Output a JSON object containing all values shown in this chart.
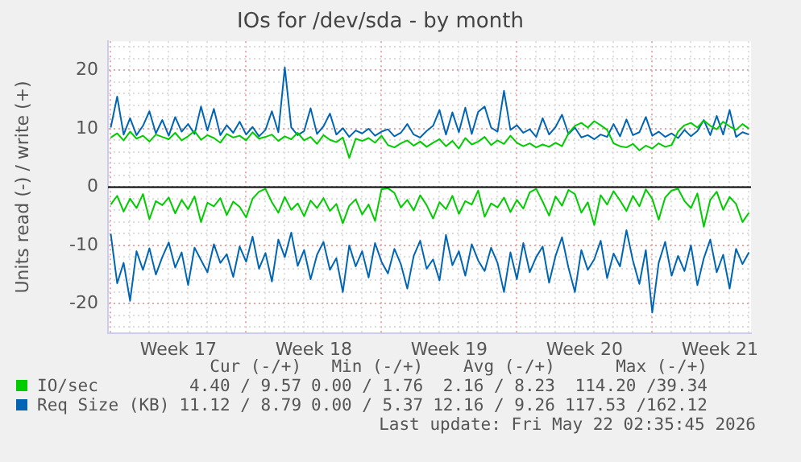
{
  "chart_data": {
    "type": "line",
    "title": "IOs for /dev/sda - by month",
    "ylabel": "Units read (-) / write (+)",
    "x": [
      "2026-04-19T00:00",
      "2026-04-19T08:00",
      "2026-04-19T16:00",
      "2026-04-20T00:00",
      "2026-04-20T08:00",
      "2026-04-20T16:00",
      "2026-04-21T00:00",
      "2026-04-21T08:00",
      "2026-04-21T16:00",
      "2026-04-22T00:00",
      "2026-04-22T08:00",
      "2026-04-22T16:00",
      "2026-04-23T00:00",
      "2026-04-23T08:00",
      "2026-04-23T16:00",
      "2026-04-24T00:00",
      "2026-04-24T08:00",
      "2026-04-24T16:00",
      "2026-04-25T00:00",
      "2026-04-25T08:00",
      "2026-04-25T16:00",
      "2026-04-26T00:00",
      "2026-04-26T08:00",
      "2026-04-26T16:00",
      "2026-04-27T00:00",
      "2026-04-27T08:00",
      "2026-04-27T16:00",
      "2026-04-28T00:00",
      "2026-04-28T08:00",
      "2026-04-28T16:00",
      "2026-04-29T00:00",
      "2026-04-29T08:00",
      "2026-04-29T16:00",
      "2026-04-30T00:00",
      "2026-04-30T08:00",
      "2026-04-30T16:00",
      "2026-05-01T00:00",
      "2026-05-01T08:00",
      "2026-05-01T16:00",
      "2026-05-02T00:00",
      "2026-05-02T08:00",
      "2026-05-02T16:00",
      "2026-05-03T00:00",
      "2026-05-03T08:00",
      "2026-05-03T16:00",
      "2026-05-04T00:00",
      "2026-05-04T08:00",
      "2026-05-04T16:00",
      "2026-05-05T00:00",
      "2026-05-05T08:00",
      "2026-05-05T16:00",
      "2026-05-06T00:00",
      "2026-05-06T08:00",
      "2026-05-06T16:00",
      "2026-05-07T00:00",
      "2026-05-07T08:00",
      "2026-05-07T16:00",
      "2026-05-08T00:00",
      "2026-05-08T08:00",
      "2026-05-08T16:00",
      "2026-05-09T00:00",
      "2026-05-09T08:00",
      "2026-05-09T16:00",
      "2026-05-10T00:00",
      "2026-05-10T08:00",
      "2026-05-10T16:00",
      "2026-05-11T00:00",
      "2026-05-11T08:00",
      "2026-05-11T16:00",
      "2026-05-12T00:00",
      "2026-05-12T08:00",
      "2026-05-12T16:00",
      "2026-05-13T00:00",
      "2026-05-13T08:00",
      "2026-05-13T16:00",
      "2026-05-14T00:00",
      "2026-05-14T08:00",
      "2026-05-14T16:00",
      "2026-05-15T00:00",
      "2026-05-15T08:00",
      "2026-05-15T16:00",
      "2026-05-16T00:00",
      "2026-05-16T08:00",
      "2026-05-16T16:00",
      "2026-05-17T00:00",
      "2026-05-17T08:00",
      "2026-05-17T16:00",
      "2026-05-18T00:00",
      "2026-05-18T08:00",
      "2026-05-18T16:00",
      "2026-05-19T00:00",
      "2026-05-19T08:00",
      "2026-05-19T16:00",
      "2026-05-20T00:00",
      "2026-05-20T08:00",
      "2026-05-20T16:00",
      "2026-05-21T00:00",
      "2026-05-21T08:00",
      "2026-05-21T16:00",
      "2026-05-22T00:00"
    ],
    "series": [
      {
        "name": "IO/sec",
        "color": "#00cc00",
        "values": [
          8.5,
          9.2,
          8.0,
          9.5,
          8.3,
          8.8,
          7.8,
          9.0,
          8.6,
          8.2,
          9.3,
          8.0,
          8.7,
          9.6,
          8.1,
          8.9,
          8.4,
          7.6,
          9.1,
          8.5,
          8.8,
          8.0,
          9.4,
          8.3,
          8.6,
          9.0,
          7.9,
          8.7,
          8.2,
          9.3,
          8.0,
          8.6,
          7.4,
          8.9,
          8.1,
          7.7,
          8.5,
          5.0,
          8.3,
          7.9,
          8.4,
          7.6,
          8.8,
          7.2,
          6.8,
          7.5,
          8.0,
          7.1,
          7.8,
          6.9,
          7.6,
          8.2,
          7.0,
          7.9,
          6.6,
          8.4,
          7.3,
          7.8,
          8.6,
          7.2,
          8.0,
          7.4,
          8.8,
          7.6,
          7.0,
          7.5,
          6.8,
          7.3,
          6.9,
          7.6,
          7.0,
          9.2,
          10.5,
          11.0,
          10.2,
          11.3,
          10.6,
          9.8,
          7.5,
          7.0,
          6.8,
          7.4,
          6.3,
          7.1,
          6.6,
          7.5,
          6.9,
          7.2,
          9.5,
          10.6,
          11.0,
          10.2,
          11.4,
          10.5,
          9.9,
          11.2,
          10.4,
          9.8,
          10.8,
          10.0
        ]
      },
      {
        "name": "Req Size (KB)",
        "color": "#0066b3",
        "values": [
          10.2,
          15.5,
          9.0,
          11.8,
          8.9,
          10.5,
          13.0,
          9.2,
          11.5,
          8.8,
          12.0,
          9.5,
          10.8,
          9.1,
          13.8,
          9.7,
          13.4,
          8.9,
          10.6,
          9.3,
          11.2,
          9.0,
          10.3,
          8.7,
          9.8,
          13.0,
          9.4,
          20.5,
          10.2,
          8.9,
          9.6,
          13.5,
          9.1,
          10.4,
          12.6,
          9.0,
          10.1,
          8.6,
          9.7,
          9.2,
          10.0,
          8.8,
          9.5,
          9.9,
          8.7,
          9.3,
          10.8,
          9.0,
          8.5,
          9.6,
          10.5,
          13.2,
          9.0,
          12.8,
          9.4,
          13.6,
          9.1,
          12.9,
          13.8,
          10.2,
          9.5,
          16.5,
          9.8,
          10.6,
          9.3,
          9.9,
          8.6,
          11.8,
          9.0,
          10.3,
          12.4,
          9.1,
          10.2,
          8.5,
          8.9,
          8.2,
          9.0,
          8.6,
          10.8,
          8.7,
          11.6,
          8.9,
          9.4,
          12.0,
          8.8,
          9.5,
          8.6,
          9.2,
          8.4,
          9.8,
          8.7,
          9.6,
          11.5,
          8.9,
          12.2,
          9.0,
          13.2,
          8.6,
          9.4,
          9.0
        ]
      },
      {
        "color": "#00cc00",
        "values": [
          -3.0,
          -1.5,
          -4.2,
          -2.0,
          -3.6,
          -1.2,
          -5.5,
          -2.4,
          -3.1,
          -1.8,
          -4.5,
          -2.2,
          -3.8,
          -1.6,
          -6.0,
          -2.7,
          -3.3,
          -1.9,
          -4.8,
          -2.5,
          -3.4,
          -5.2,
          -2.0,
          -0.8,
          -0.3,
          -2.6,
          -4.4,
          -1.7,
          -3.9,
          -2.8,
          -5.0,
          -2.3,
          -3.6,
          -1.9,
          -4.1,
          -2.9,
          -6.2,
          -3.2,
          -2.1,
          -4.7,
          -3.0,
          -5.8,
          -0.4,
          -0.2,
          -1.0,
          -3.5,
          -2.2,
          -4.0,
          -1.4,
          -3.1,
          -5.4,
          -2.6,
          -3.8,
          -1.5,
          -4.6,
          -2.4,
          -3.0,
          -0.6,
          -5.1,
          -2.8,
          -3.5,
          -1.8,
          -4.3,
          -2.2,
          -3.7,
          -0.9,
          -0.3,
          -2.5,
          -4.9,
          -1.6,
          -3.2,
          -0.5,
          -1.2,
          -4.4,
          -2.6,
          -6.5,
          -1.4,
          -3.0,
          -0.7,
          -2.3,
          -4.1,
          -1.5,
          -3.3,
          -0.4,
          -2.0,
          -5.6,
          -1.8,
          -0.6,
          -0.3,
          -2.4,
          -3.6,
          -1.1,
          -6.8,
          -2.2,
          -0.8,
          -3.9,
          -1.7,
          -2.9,
          -6.0,
          -4.4
        ]
      },
      {
        "color": "#0066b3",
        "values": [
          -8.0,
          -16.5,
          -13.0,
          -19.5,
          -11.0,
          -14.2,
          -10.5,
          -15.0,
          -12.0,
          -9.5,
          -13.8,
          -11.2,
          -16.8,
          -10.4,
          -12.5,
          -14.6,
          -9.8,
          -13.0,
          -11.5,
          -15.4,
          -10.2,
          -12.8,
          -8.5,
          -14.0,
          -11.3,
          -16.2,
          -9.0,
          -12.0,
          -7.8,
          -13.5,
          -10.8,
          -15.8,
          -11.6,
          -9.4,
          -14.2,
          -12.2,
          -18.0,
          -10.0,
          -13.6,
          -11.0,
          -15.5,
          -9.6,
          -12.8,
          -14.8,
          -10.6,
          -13.2,
          -17.4,
          -11.8,
          -9.2,
          -14.0,
          -12.4,
          -16.0,
          -8.2,
          -13.4,
          -11.0,
          -15.2,
          -9.8,
          -12.6,
          -14.4,
          -10.4,
          -13.0,
          -18.0,
          -11.2,
          -15.8,
          -9.6,
          -14.6,
          -12.0,
          -10.2,
          -16.4,
          -11.8,
          -8.6,
          -13.8,
          -18.0,
          -10.8,
          -14.2,
          -12.4,
          -9.2,
          -15.6,
          -11.4,
          -13.6,
          -7.4,
          -12.6,
          -16.6,
          -10.8,
          -21.5,
          -13.0,
          -9.4,
          -15.2,
          -11.8,
          -14.4,
          -10.0,
          -16.8,
          -12.2,
          -9.0,
          -14.6,
          -11.6,
          -17.4,
          -10.6,
          -13.2,
          -11.2
        ]
      }
    ],
    "xlim": [
      "2026-04-18T20:35",
      "2026-05-22T02:35"
    ],
    "xticks": [
      {
        "value": "2026-04-19T00:00",
        "label": null
      },
      {
        "value": "2026-04-20T00:00",
        "label": null
      },
      {
        "value": "2026-04-21T00:00",
        "label": null
      },
      {
        "value": "2026-04-22T00:00",
        "label": null
      },
      {
        "value": "2026-04-22T12:00",
        "label": "Week 17"
      },
      {
        "value": "2026-04-23T00:00",
        "label": null
      },
      {
        "value": "2026-04-24T00:00",
        "label": null
      },
      {
        "value": "2026-04-25T00:00",
        "label": null
      },
      {
        "value": "2026-04-26T00:00",
        "label": null
      },
      {
        "value": "2026-04-27T00:00",
        "label": null
      },
      {
        "value": "2026-04-28T00:00",
        "label": null
      },
      {
        "value": "2026-04-29T00:00",
        "label": null
      },
      {
        "value": "2026-04-29T12:00",
        "label": "Week 18"
      },
      {
        "value": "2026-04-30T00:00",
        "label": null
      },
      {
        "value": "2026-05-01T00:00",
        "label": null
      },
      {
        "value": "2026-05-02T00:00",
        "label": null
      },
      {
        "value": "2026-05-03T00:00",
        "label": null
      },
      {
        "value": "2026-05-04T00:00",
        "label": null
      },
      {
        "value": "2026-05-05T00:00",
        "label": null
      },
      {
        "value": "2026-05-06T00:00",
        "label": null
      },
      {
        "value": "2026-05-06T12:00",
        "label": "Week 19"
      },
      {
        "value": "2026-05-07T00:00",
        "label": null
      },
      {
        "value": "2026-05-08T00:00",
        "label": null
      },
      {
        "value": "2026-05-09T00:00",
        "label": null
      },
      {
        "value": "2026-05-10T00:00",
        "label": null
      },
      {
        "value": "2026-05-11T00:00",
        "label": null
      },
      {
        "value": "2026-05-12T00:00",
        "label": null
      },
      {
        "value": "2026-05-13T00:00",
        "label": null
      },
      {
        "value": "2026-05-13T12:00",
        "label": "Week 20"
      },
      {
        "value": "2026-05-14T00:00",
        "label": null
      },
      {
        "value": "2026-05-15T00:00",
        "label": null
      },
      {
        "value": "2026-05-16T00:00",
        "label": null
      },
      {
        "value": "2026-05-17T00:00",
        "label": null
      },
      {
        "value": "2026-05-18T00:00",
        "label": null
      },
      {
        "value": "2026-05-19T00:00",
        "label": null
      },
      {
        "value": "2026-05-20T00:00",
        "label": null
      },
      {
        "value": "2026-05-20T12:00",
        "label": "Week 21"
      },
      {
        "value": "2026-05-21T00:00",
        "label": null
      },
      {
        "value": "2026-05-22T00:00",
        "label": null
      }
    ],
    "ylim": [
      -25,
      25
    ],
    "yticks": [
      {
        "value": -24,
        "label": null
      },
      {
        "value": -22,
        "label": null
      },
      -20,
      {
        "value": -18,
        "label": null
      },
      {
        "value": -16,
        "label": null
      },
      {
        "value": -14,
        "label": null
      },
      {
        "value": -12,
        "label": null
      },
      -10,
      {
        "value": -8,
        "label": null
      },
      {
        "value": -6,
        "label": null
      },
      {
        "value": -4,
        "label": null
      },
      {
        "value": -2,
        "label": null
      },
      0,
      {
        "value": 2,
        "label": null
      },
      {
        "value": 4,
        "label": null
      },
      {
        "value": 6,
        "label": null
      },
      {
        "value": 8,
        "label": null
      },
      10,
      {
        "value": 12,
        "label": null
      },
      {
        "value": 14,
        "label": null
      },
      {
        "value": 16,
        "label": null
      },
      {
        "value": 18,
        "label": null
      },
      20,
      {
        "value": 22,
        "label": null
      },
      {
        "value": 24,
        "label": null
      }
    ],
    "ref_lines": [
      {
        "axis": "y",
        "value": 0,
        "color": "#000000"
      }
    ],
    "grid": true,
    "legend": "bottom",
    "annotations": [
      "Cur (-/+)",
      "Min (-/+)",
      "Avg (-/+)",
      "Max (-/+)",
      "4.40 / 9.57",
      "0.00 / 1.76",
      "2.16 / 8.23",
      "114.20 /39.34",
      "11.12 / 8.79",
      "0.00 / 5.37",
      "12.16 / 9.26",
      "117.53 /162.12",
      "Last update: Fri May 22 02:35:45 2026"
    ]
  }
}
